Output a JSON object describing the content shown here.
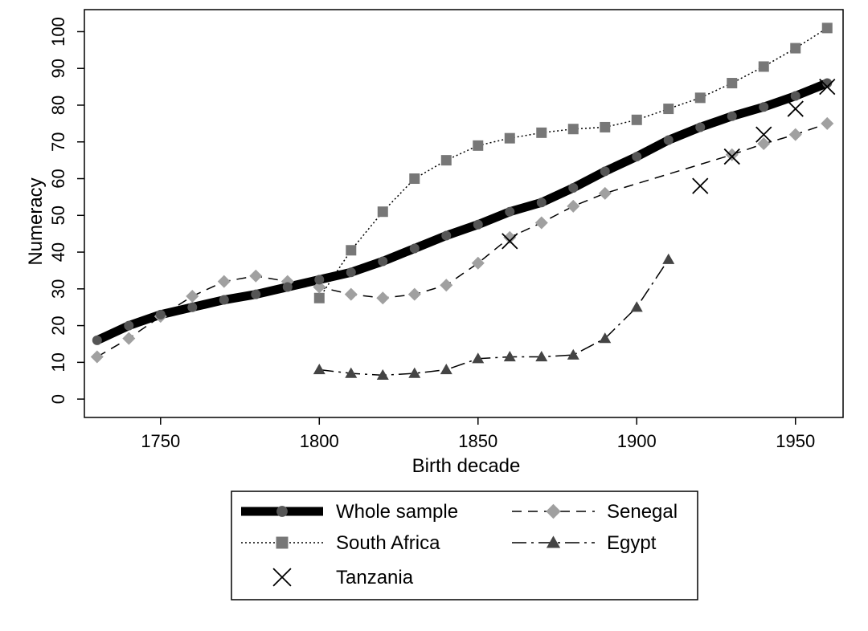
{
  "chart_data": {
    "type": "line",
    "title": "",
    "xlabel": "Birth decade",
    "ylabel": "Numeracy",
    "xlim": [
      1726,
      1965
    ],
    "ylim": [
      -5,
      106
    ],
    "xticks": [
      1750,
      1800,
      1850,
      1900,
      1950
    ],
    "yticks": [
      0,
      10,
      20,
      30,
      40,
      50,
      60,
      70,
      80,
      90,
      100
    ],
    "grid": false,
    "legend_position": "bottom",
    "series": [
      {
        "name": "Whole sample",
        "marker": "circle",
        "line": "solid-thick",
        "color": "#000000",
        "marker_color": "#555555",
        "x": [
          1730,
          1740,
          1750,
          1760,
          1770,
          1780,
          1790,
          1800,
          1810,
          1820,
          1830,
          1840,
          1850,
          1860,
          1870,
          1880,
          1890,
          1900,
          1910,
          1920,
          1930,
          1940,
          1950,
          1960
        ],
        "y": [
          16,
          20,
          23,
          25,
          27,
          28.5,
          30.5,
          32.5,
          34.5,
          37.5,
          41,
          44.5,
          47.5,
          51,
          53.5,
          57.5,
          62,
          66,
          70.5,
          74,
          77,
          79.5,
          82.5,
          86
        ]
      },
      {
        "name": "South Africa",
        "marker": "square",
        "line": "dotted",
        "color": "#000000",
        "marker_color": "#777777",
        "x": [
          1800,
          1810,
          1820,
          1830,
          1840,
          1850,
          1860,
          1870,
          1880,
          1890,
          1900,
          1910,
          1920,
          1930,
          1940,
          1950,
          1960
        ],
        "y": [
          27.5,
          40.5,
          51,
          60,
          65,
          69,
          71,
          72.5,
          73.5,
          74,
          76,
          79,
          82,
          86,
          90.5,
          95.5,
          101
        ]
      },
      {
        "name": "Tanzania",
        "marker": "x",
        "line": "none",
        "color": "#000000",
        "marker_color": "#000000",
        "x": [
          1860,
          1920,
          1930,
          1940,
          1950,
          1960
        ],
        "y": [
          43,
          58,
          66,
          72,
          79,
          85
        ]
      },
      {
        "name": "Senegal",
        "marker": "diamond",
        "line": "dashed",
        "color": "#000000",
        "marker_color": "#a0a0a0",
        "x": [
          1730,
          1740,
          1750,
          1760,
          1770,
          1780,
          1790,
          1800,
          1810,
          1820,
          1830,
          1840,
          1850,
          1860,
          1870,
          1880,
          1890,
          1930,
          1940,
          1950,
          1960
        ],
        "y": [
          11.5,
          16.5,
          22.5,
          28,
          32,
          33.5,
          32,
          30.5,
          28.5,
          27.5,
          28.5,
          31,
          37,
          44,
          48,
          52.5,
          56,
          66.5,
          69.5,
          72,
          75
        ]
      },
      {
        "name": "Egypt",
        "marker": "triangle",
        "line": "dashdot",
        "color": "#000000",
        "marker_color": "#444444",
        "x": [
          1800,
          1810,
          1820,
          1830,
          1840,
          1850,
          1860,
          1870,
          1880,
          1890,
          1900,
          1910
        ],
        "y": [
          8,
          7,
          6.5,
          7,
          8,
          11,
          11.5,
          11.5,
          12,
          16.5,
          25,
          38
        ]
      }
    ]
  }
}
